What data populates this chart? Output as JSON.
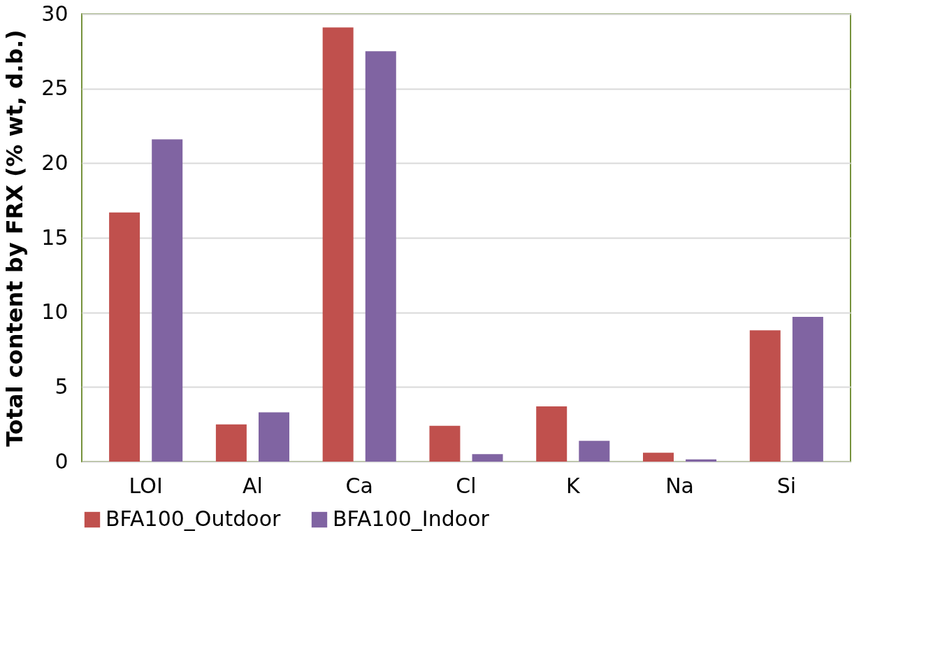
{
  "chart_data": {
    "type": "bar",
    "ylabel": "Total content by FRX (% wt, d.b.)",
    "categories": [
      "LOI",
      "Al",
      "Ca",
      "Cl",
      "K",
      "Na",
      "Si"
    ],
    "series": [
      {
        "name": "BFA100_Outdoor",
        "color": "#c0504d",
        "values": [
          16.7,
          2.5,
          29.1,
          2.4,
          3.7,
          0.6,
          8.8
        ]
      },
      {
        "name": "BFA100_Indoor",
        "color": "#8064a2",
        "values": [
          21.6,
          3.3,
          27.5,
          0.5,
          1.4,
          0.15,
          9.7
        ]
      }
    ],
    "ylim": [
      0,
      30
    ],
    "yticks": [
      0,
      5,
      10,
      15,
      20,
      25,
      30
    ],
    "grid": "y",
    "legend": "bottom"
  }
}
